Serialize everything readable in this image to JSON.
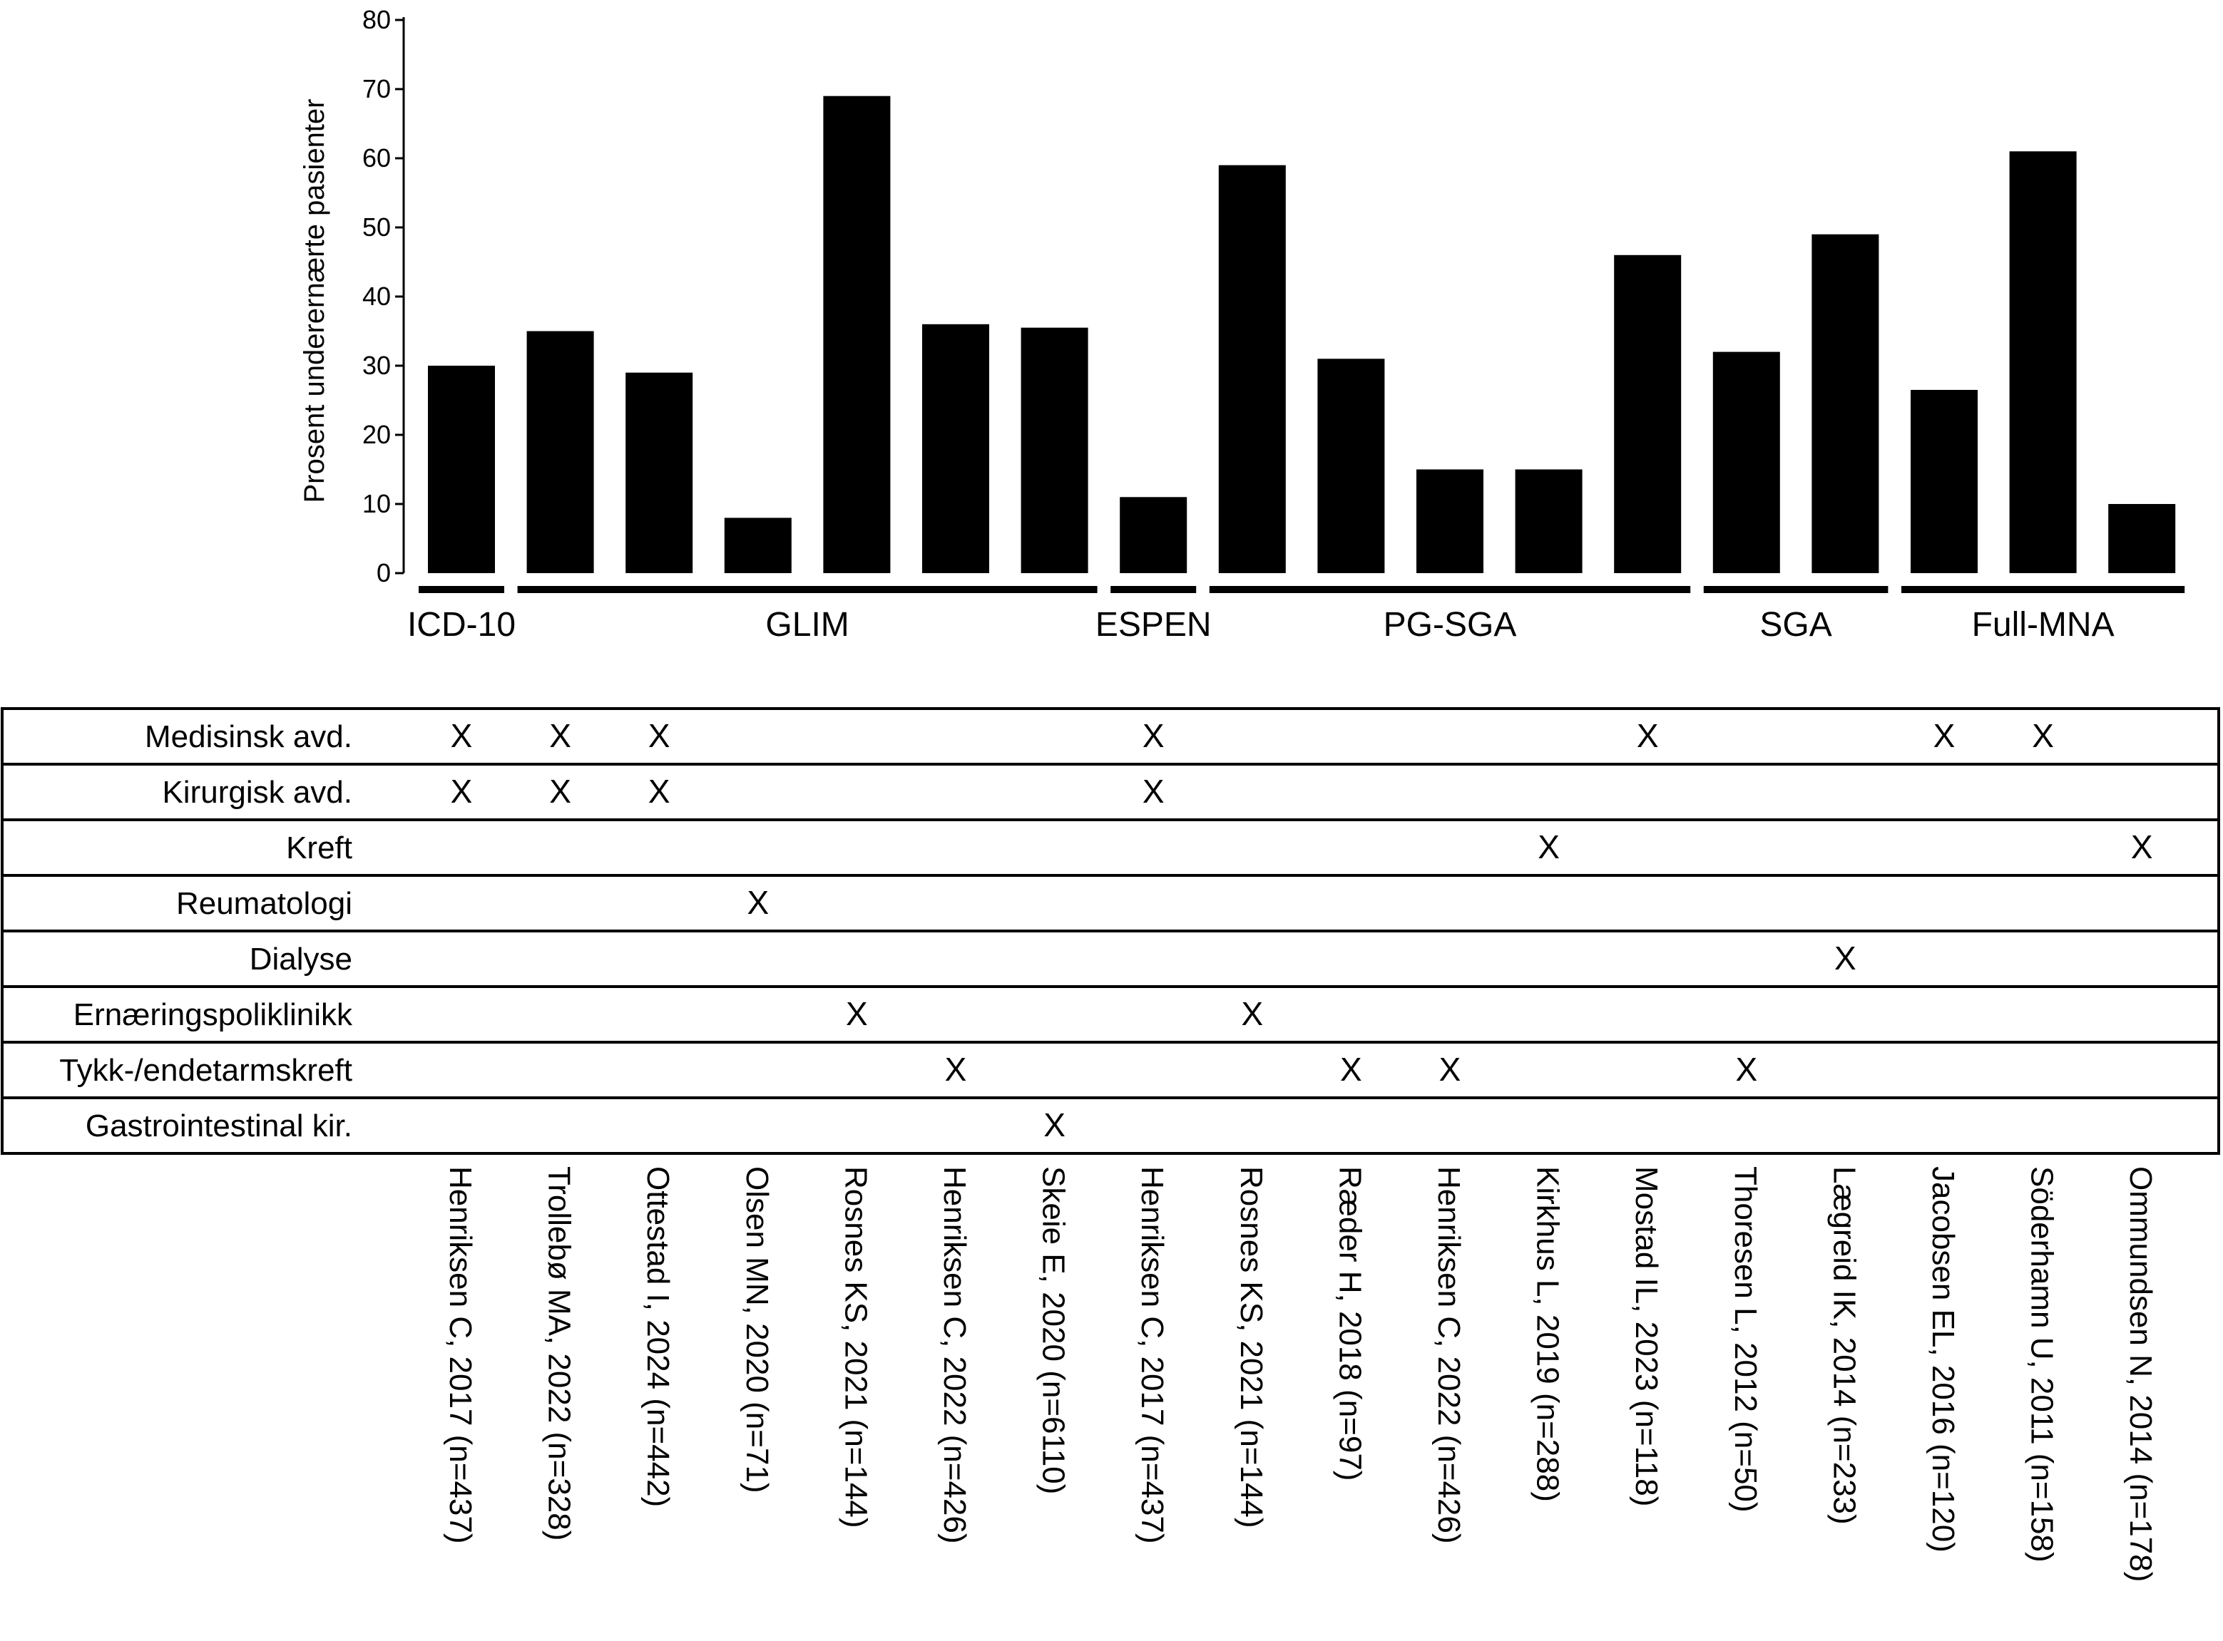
{
  "chart_data": {
    "type": "bar",
    "ylabel": "Prosent underernærte pasienter",
    "xlabel": "",
    "ylim": [
      0,
      80
    ],
    "yticks": [
      0,
      10,
      20,
      30,
      40,
      50,
      60,
      70,
      80
    ],
    "bar_color": "#000000",
    "categories": [
      "Henriksen C, 2017 (n=437)",
      "Trollebø MA, 2022 (n=328)",
      "Ottestad I, 2024 (n=442)",
      "Olsen MN, 2020 (n=71)",
      "Rosnes KS, 2021 (n=144)",
      "Henriksen C, 2022 (n=426)",
      "Skeie E, 2020 (n=6110)",
      "Henriksen C, 2017 (n=437)",
      "Rosnes KS, 2021 (n=144)",
      "Ræder H, 2018 (n=97)",
      "Henriksen C, 2022 (n=426)",
      "Kirkhus L, 2019 (n=288)",
      "Mostad IL, 2023 (n=118)",
      "Thoresen L, 2012 (n=50)",
      "Lægreid IK, 2014 (n=233)",
      "Jacobsen EL, 2016 (n=120)",
      "Söderhamn U, 2011 (n=158)",
      "Ommundsen N, 2014 (n=178)"
    ],
    "values": [
      30,
      35,
      29,
      8,
      69,
      36,
      35.5,
      11,
      59,
      31,
      15,
      15,
      46,
      32,
      49,
      26.5,
      61,
      10
    ],
    "groups": [
      {
        "label": "ICD-10",
        "start": 0,
        "end": 0
      },
      {
        "label": "GLIM",
        "start": 1,
        "end": 6
      },
      {
        "label": "ESPEN",
        "start": 7,
        "end": 7
      },
      {
        "label": "PG-SGA",
        "start": 8,
        "end": 12
      },
      {
        "label": "SGA",
        "start": 13,
        "end": 14
      },
      {
        "label": "Full-MNA",
        "start": 15,
        "end": 17
      }
    ],
    "table": {
      "mark": "X",
      "rows": [
        {
          "label": "Medisinsk avd.",
          "marks": [
            0,
            1,
            2,
            7,
            12,
            15,
            16
          ]
        },
        {
          "label": "Kirurgisk avd.",
          "marks": [
            0,
            1,
            2,
            7
          ]
        },
        {
          "label": "Kreft",
          "marks": [
            11,
            17
          ]
        },
        {
          "label": "Reumatologi",
          "marks": [
            3
          ]
        },
        {
          "label": "Dialyse",
          "marks": [
            14
          ]
        },
        {
          "label": "Ernæringspoliklinikk",
          "marks": [
            4,
            8
          ]
        },
        {
          "label": "Tykk-/endetarmskreft",
          "marks": [
            5,
            9,
            10,
            13
          ]
        },
        {
          "label": "Gastrointestinal kir.",
          "marks": [
            6
          ]
        }
      ]
    }
  }
}
